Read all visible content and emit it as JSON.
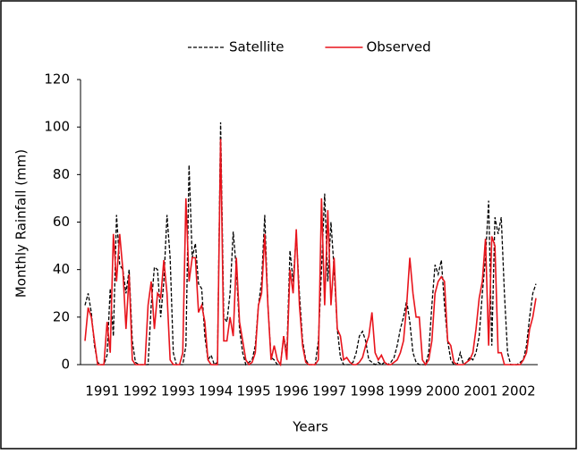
{
  "chart_data": {
    "type": "line",
    "y_label": "Monthly Rainfall (mm)",
    "x_label": "Years",
    "ylim": [
      0,
      120
    ],
    "yticks": [
      0,
      20,
      40,
      60,
      80,
      100,
      120
    ],
    "grid": false,
    "legend": "top",
    "categories": [
      null,
      null,
      null,
      null,
      null,
      "1991",
      null,
      null,
      null,
      null,
      null,
      null,
      null,
      null,
      null,
      null,
      null,
      "1992",
      null,
      null,
      null,
      null,
      null,
      null,
      null,
      null,
      null,
      null,
      null,
      "1993",
      null,
      null,
      null,
      null,
      null,
      null,
      null,
      null,
      null,
      null,
      null,
      "1994",
      null,
      null,
      null,
      null,
      null,
      null,
      null,
      null,
      null,
      null,
      null,
      "1995",
      null,
      null,
      null,
      null,
      null,
      null,
      null,
      null,
      null,
      null,
      null,
      "1996",
      null,
      null,
      null,
      null,
      null,
      null,
      null,
      null,
      null,
      null,
      null,
      "1997",
      null,
      null,
      null,
      null,
      null,
      null,
      null,
      null,
      null,
      null,
      null,
      "1998",
      null,
      null,
      null,
      null,
      null,
      null,
      null,
      null,
      null,
      null,
      null,
      "1999",
      null,
      null,
      null,
      null,
      null,
      null,
      null,
      null,
      null,
      null,
      null,
      "2000",
      null,
      null,
      null,
      null,
      null,
      null,
      null,
      null,
      null,
      null,
      null,
      "2001",
      null,
      null,
      null,
      null,
      null,
      null,
      null,
      null,
      null,
      null,
      null,
      "2002",
      null,
      null,
      null,
      null,
      null,
      null
    ],
    "series": [
      {
        "name": "Satellite",
        "color": "#000000",
        "dashed": true,
        "values": [
          25,
          30,
          22,
          8,
          1,
          0,
          0,
          4,
          32,
          12,
          63,
          42,
          40,
          30,
          40,
          10,
          1,
          0,
          0,
          0,
          0,
          25,
          41,
          40,
          20,
          35,
          63,
          45,
          5,
          0,
          0,
          0,
          8,
          84,
          45,
          51,
          34,
          32,
          12,
          2,
          4,
          0,
          1,
          102,
          20,
          18,
          30,
          56,
          40,
          15,
          5,
          0,
          1,
          2,
          8,
          25,
          35,
          63,
          25,
          3,
          2,
          0,
          0,
          12,
          5,
          48,
          35,
          55,
          30,
          10,
          2,
          0,
          0,
          0,
          10,
          40,
          72,
          35,
          60,
          40,
          15,
          3,
          0,
          0,
          0,
          1,
          5,
          12,
          14,
          10,
          2,
          1,
          0,
          1,
          0,
          1,
          0,
          1,
          3,
          8,
          15,
          20,
          27,
          18,
          5,
          1,
          0,
          0,
          0,
          5,
          25,
          42,
          38,
          44,
          25,
          10,
          2,
          0,
          0,
          5,
          0,
          1,
          3,
          2,
          5,
          12,
          30,
          45,
          69,
          8,
          62,
          55,
          62,
          30,
          5,
          0,
          0,
          0,
          1,
          2,
          8,
          20,
          30,
          34
        ]
      },
      {
        "name": "Observed",
        "color": "#e8141c",
        "dashed": false,
        "values": [
          10,
          24,
          20,
          10,
          0,
          0,
          0,
          18,
          5,
          55,
          35,
          55,
          40,
          15,
          38,
          2,
          0,
          0,
          0,
          0,
          25,
          35,
          15,
          30,
          28,
          44,
          30,
          2,
          0,
          0,
          0,
          5,
          70,
          35,
          45,
          45,
          22,
          25,
          18,
          2,
          0,
          0,
          0,
          95,
          10,
          10,
          20,
          12,
          45,
          18,
          10,
          2,
          0,
          1,
          5,
          25,
          30,
          55,
          25,
          2,
          8,
          2,
          0,
          12,
          2,
          40,
          30,
          57,
          25,
          8,
          1,
          0,
          0,
          0,
          2,
          70,
          25,
          65,
          25,
          45,
          15,
          12,
          2,
          3,
          1,
          0,
          0,
          1,
          3,
          8,
          12,
          22,
          5,
          2,
          4,
          1,
          0,
          0,
          1,
          2,
          5,
          10,
          25,
          45,
          30,
          20,
          20,
          2,
          0,
          2,
          10,
          30,
          35,
          37,
          35,
          10,
          8,
          1,
          0,
          0,
          0,
          1,
          2,
          5,
          15,
          28,
          35,
          53,
          8,
          54,
          50,
          5,
          5,
          0,
          0,
          0,
          0,
          0,
          0,
          2,
          5,
          15,
          20,
          28
        ]
      }
    ]
  }
}
